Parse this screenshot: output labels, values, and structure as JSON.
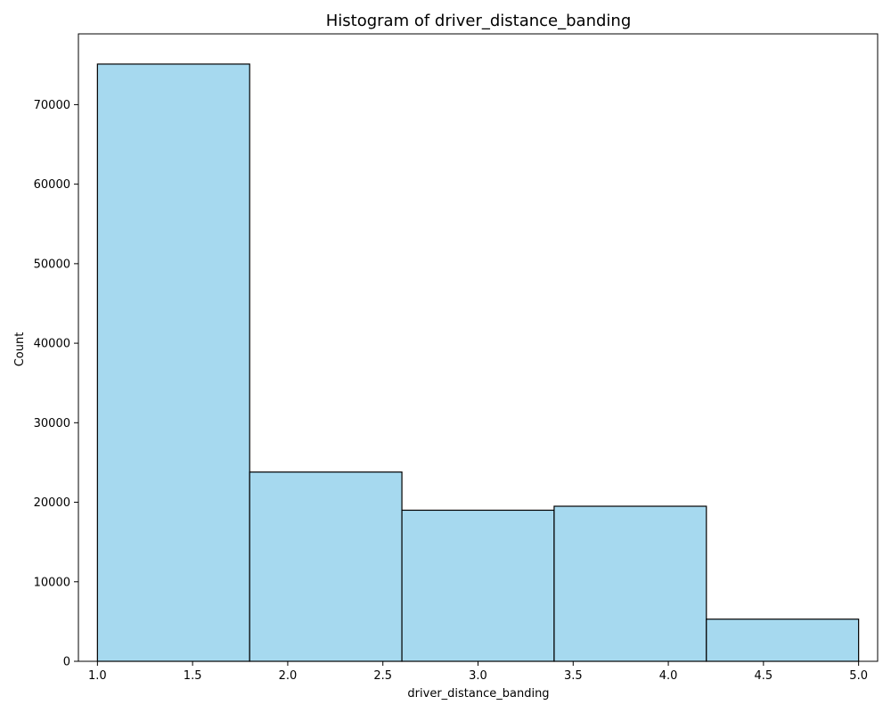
{
  "chart_data": {
    "type": "bar",
    "title": "Histogram of driver_distance_banding",
    "xlabel": "driver_distance_banding",
    "ylabel": "Count",
    "bins": [
      {
        "x0": 1.0,
        "x1": 1.8,
        "count": 75100
      },
      {
        "x0": 1.8,
        "x1": 2.6,
        "count": 23800
      },
      {
        "x0": 2.6,
        "x1": 3.4,
        "count": 19000
      },
      {
        "x0": 3.4,
        "x1": 4.2,
        "count": 19500
      },
      {
        "x0": 4.2,
        "x1": 5.0,
        "count": 5300
      }
    ],
    "xlim": [
      0.9,
      5.1
    ],
    "ylim": [
      0,
      78900
    ],
    "x_ticks": [
      1.0,
      1.5,
      2.0,
      2.5,
      3.0,
      3.5,
      4.0,
      4.5,
      5.0
    ],
    "x_tick_labels": [
      "1.0",
      "1.5",
      "2.0",
      "2.5",
      "3.0",
      "3.5",
      "4.0",
      "4.5",
      "5.0"
    ],
    "y_ticks": [
      0,
      10000,
      20000,
      30000,
      40000,
      50000,
      60000,
      70000
    ],
    "y_tick_labels": [
      "0",
      "10000",
      "20000",
      "30000",
      "40000",
      "50000",
      "60000",
      "70000"
    ],
    "grid": false,
    "colors": {
      "bar_fill": "#a6d9ef",
      "bar_edge": "#000000",
      "axis": "#000000"
    }
  }
}
